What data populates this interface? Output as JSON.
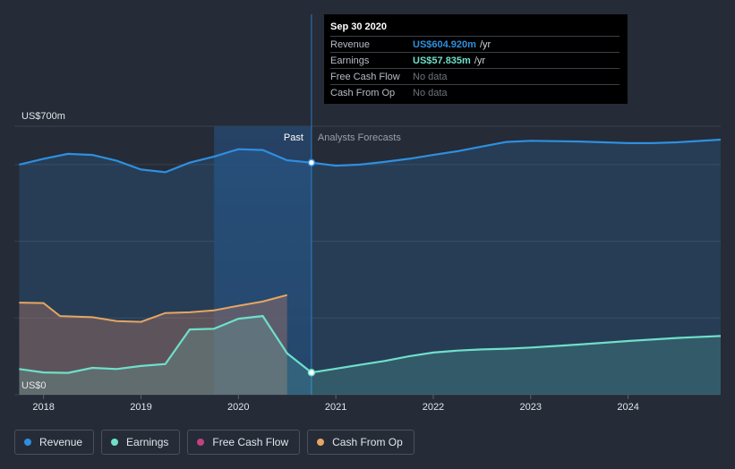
{
  "chart_data": {
    "type": "line",
    "xlim": [
      2017.7,
      2024.95
    ],
    "ylim": [
      0,
      700
    ],
    "y_tick_labels": {
      "top": "US$700m",
      "bottom": "US$0"
    },
    "x_ticks": [
      "2018",
      "2019",
      "2020",
      "2021",
      "2022",
      "2023",
      "2024"
    ],
    "x_tick_values": [
      2018,
      2019,
      2020,
      2021,
      2022,
      2023,
      2024
    ],
    "past_label": "Past",
    "forecast_label": "Analysts Forecasts",
    "divider_x": 2020.75,
    "past_shade_start": 2019.75,
    "series": [
      {
        "name": "Revenue",
        "color": "#2e8fe0",
        "points": [
          [
            2017.75,
            600
          ],
          [
            2018.0,
            615
          ],
          [
            2018.25,
            628
          ],
          [
            2018.5,
            625
          ],
          [
            2018.75,
            610
          ],
          [
            2019.0,
            587
          ],
          [
            2019.25,
            580
          ],
          [
            2019.5,
            605
          ],
          [
            2019.75,
            621
          ],
          [
            2020.0,
            640
          ],
          [
            2020.25,
            638
          ],
          [
            2020.5,
            611
          ],
          [
            2020.75,
            605
          ],
          [
            2021.0,
            597
          ],
          [
            2021.25,
            600
          ],
          [
            2021.5,
            607
          ],
          [
            2021.75,
            615
          ],
          [
            2022.0,
            625
          ],
          [
            2022.25,
            635
          ],
          [
            2022.5,
            647
          ],
          [
            2022.75,
            659
          ],
          [
            2023.0,
            662
          ],
          [
            2023.5,
            660
          ],
          [
            2024.0,
            656
          ],
          [
            2024.25,
            656
          ],
          [
            2024.5,
            658
          ],
          [
            2024.95,
            665
          ]
        ]
      },
      {
        "name": "Earnings",
        "color": "#6fdfca",
        "points": [
          [
            2017.75,
            67
          ],
          [
            2018.0,
            58
          ],
          [
            2018.25,
            57
          ],
          [
            2018.5,
            70
          ],
          [
            2018.75,
            67
          ],
          [
            2019.0,
            75
          ],
          [
            2019.25,
            80
          ],
          [
            2019.5,
            170
          ],
          [
            2019.75,
            172
          ],
          [
            2020.0,
            198
          ],
          [
            2020.25,
            205
          ],
          [
            2020.5,
            108
          ],
          [
            2020.75,
            57.835
          ],
          [
            2021.0,
            68
          ],
          [
            2021.25,
            78
          ],
          [
            2021.5,
            88
          ],
          [
            2021.75,
            100
          ],
          [
            2022.0,
            110
          ],
          [
            2022.25,
            115
          ],
          [
            2022.5,
            118
          ],
          [
            2022.75,
            120
          ],
          [
            2023.0,
            123
          ],
          [
            2023.5,
            131
          ],
          [
            2024.0,
            140
          ],
          [
            2024.5,
            148
          ],
          [
            2024.95,
            153
          ]
        ]
      },
      {
        "name": "Free Cash Flow",
        "color": "#c2417f",
        "points": []
      },
      {
        "name": "Cash From Op",
        "color": "#e6a664",
        "points": [
          [
            2017.75,
            240
          ],
          [
            2018.0,
            239
          ],
          [
            2018.17,
            205
          ],
          [
            2018.5,
            202
          ],
          [
            2018.75,
            192
          ],
          [
            2019.0,
            190
          ],
          [
            2019.25,
            213
          ],
          [
            2019.5,
            215
          ],
          [
            2019.75,
            220
          ],
          [
            2020.0,
            232
          ],
          [
            2020.25,
            243
          ],
          [
            2020.5,
            260
          ]
        ]
      }
    ]
  },
  "tooltip": {
    "date": "Sep 30 2020",
    "rows": [
      {
        "label": "Revenue",
        "value": "US$604.920m",
        "unit": "/yr",
        "color": "#2e8fe0"
      },
      {
        "label": "Earnings",
        "value": "US$57.835m",
        "unit": "/yr",
        "color": "#6fdfca"
      },
      {
        "label": "Free Cash Flow",
        "value": "No data",
        "unit": ""
      },
      {
        "label": "Cash From Op",
        "value": "No data",
        "unit": ""
      }
    ]
  },
  "legend": [
    {
      "label": "Revenue",
      "color": "#2e8fe0"
    },
    {
      "label": "Earnings",
      "color": "#6fdfca"
    },
    {
      "label": "Free Cash Flow",
      "color": "#c2417f"
    },
    {
      "label": "Cash From Op",
      "color": "#e6a664"
    }
  ]
}
